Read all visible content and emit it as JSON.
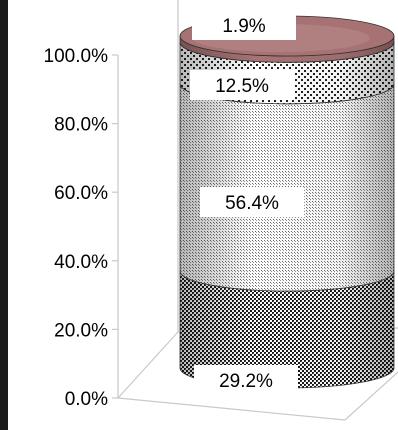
{
  "chart_data": {
    "type": "stacked-cylinder",
    "title": "",
    "xlabel": "",
    "ylabel": "",
    "ylim": [
      0,
      100
    ],
    "yticks": [
      0,
      20,
      40,
      60,
      80,
      100
    ],
    "ytick_labels": [
      "0.0%",
      "20.0%",
      "40.0%",
      "60.0%",
      "80.0%",
      "100.0%"
    ],
    "series": [
      {
        "values": [
          29.2
        ],
        "label": "29.2%",
        "pattern": "dark-checker"
      },
      {
        "values": [
          56.4
        ],
        "label": "56.4%",
        "pattern": "light-dots"
      },
      {
        "values": [
          12.5
        ],
        "label": "12.5%",
        "pattern": "sparse-dots"
      },
      {
        "values": [
          1.9
        ],
        "label": "1.9%",
        "pattern": "solid",
        "color": "#a77273"
      }
    ],
    "grid": false,
    "legend": "none"
  }
}
